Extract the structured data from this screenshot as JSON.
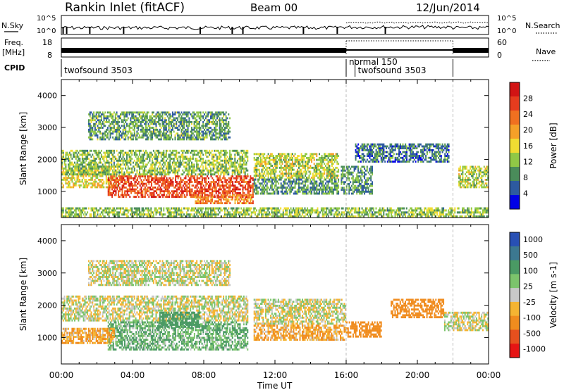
{
  "header": {
    "title": "Rankin Inlet (fitACF)",
    "beam": "Beam 00",
    "date": "12/Jun/2014"
  },
  "status_panels": {
    "nsky_label": "N.Sky",
    "nsearch_label": "N.Search",
    "nsky_ticks": [
      "10^5",
      "10^0"
    ],
    "nsearch_ticks": [
      "10^5",
      "10^0"
    ],
    "freq_label": "Freq.",
    "freq_unit": "[MHz]",
    "freq_ticks": [
      18,
      8
    ],
    "nave_label": "Nave",
    "nave_ticks": [
      60,
      0
    ],
    "cpid_label": "CPID",
    "cpid_segments": [
      {
        "label": "twofsound 3503",
        "start_hour": 0,
        "end_hour": 16
      },
      {
        "label": "normal 150",
        "start_hour": 16,
        "end_hour": 16.5
      },
      {
        "label": "twofsound 3503",
        "start_hour": 16.5,
        "end_hour": 24
      }
    ],
    "nave_dotted_interval_hours": [
      16,
      22
    ]
  },
  "chart_data": [
    {
      "type": "heatmap",
      "name": "power",
      "ylabel": "Slant Range [km]",
      "xlim_hours": [
        0,
        24
      ],
      "ylim": [
        180,
        4500
      ],
      "yticks": [
        1000,
        2000,
        3000,
        4000
      ],
      "colorbar_label": "Power [dB]",
      "colorbar_ticks": [
        4,
        8,
        12,
        16,
        20,
        24,
        28
      ],
      "colorbar_range": [
        0,
        32
      ],
      "colors": [
        "#0000e6",
        "#2d5aa0",
        "#4a8c5a",
        "#90c846",
        "#f0dc32",
        "#f5a028",
        "#f07020",
        "#e63c1e",
        "#d21414"
      ],
      "echo_regions": [
        {
          "t0": 0.0,
          "t1": 3.2,
          "r0": 1100,
          "r1": 1800,
          "level": 16
        },
        {
          "t0": 2.6,
          "t1": 10.8,
          "r0": 800,
          "r1": 1500,
          "level": 26
        },
        {
          "t0": 7.5,
          "t1": 10.8,
          "r0": 600,
          "r1": 900,
          "level": 22
        },
        {
          "t0": 0.0,
          "t1": 10.5,
          "r0": 1500,
          "r1": 2300,
          "level": 12
        },
        {
          "t0": 1.5,
          "t1": 9.5,
          "r0": 2600,
          "r1": 3500,
          "level": 10
        },
        {
          "t0": 10.8,
          "t1": 15.6,
          "r0": 1400,
          "r1": 2200,
          "level": 14
        },
        {
          "t0": 10.8,
          "t1": 15.6,
          "r0": 900,
          "r1": 1400,
          "level": 9
        },
        {
          "t0": 15.7,
          "t1": 17.5,
          "r0": 900,
          "r1": 1800,
          "level": 9
        },
        {
          "t0": 16.5,
          "t1": 21.8,
          "r0": 1900,
          "r1": 2500,
          "level": 7
        },
        {
          "t0": 22.3,
          "t1": 24.0,
          "r0": 1100,
          "r1": 1800,
          "level": 14
        },
        {
          "t0": 0.0,
          "t1": 24.0,
          "r0": 180,
          "r1": 500,
          "level": 12
        }
      ]
    },
    {
      "type": "heatmap",
      "name": "velocity",
      "xlabel": "Time UT",
      "ylabel": "Slant Range [km]",
      "xlim_hours": [
        0,
        24
      ],
      "xtick_labels": [
        "00:00",
        "04:00",
        "08:00",
        "12:00",
        "16:00",
        "20:00",
        "00:00"
      ],
      "ylim": [
        180,
        4500
      ],
      "yticks": [
        1000,
        2000,
        3000,
        4000
      ],
      "colorbar_label": "Velocity [m s-1]",
      "colorbar_ticks": [
        "1000",
        "500",
        "100",
        "25",
        "-25",
        "-100",
        "-500",
        "-1000"
      ],
      "colors": [
        "#2850b4",
        "#3c7890",
        "#4a9a64",
        "#7cc46c",
        "#c8c8c8",
        "#f5b432",
        "#f08c1e",
        "#e6501e",
        "#e61414"
      ],
      "echo_regions": [
        {
          "t0": 0.0,
          "t1": 10.5,
          "r0": 1500,
          "r1": 2300,
          "velocity": 0
        },
        {
          "t0": 2.6,
          "t1": 10.5,
          "r0": 600,
          "r1": 1500,
          "velocity": 100
        },
        {
          "t0": 5.5,
          "t1": 7.8,
          "r0": 1300,
          "r1": 1800,
          "velocity": 250
        },
        {
          "t0": 1.5,
          "t1": 9.5,
          "r0": 2600,
          "r1": 3400,
          "velocity": 0
        },
        {
          "t0": 10.8,
          "t1": 16.0,
          "r0": 1400,
          "r1": 2200,
          "velocity": 0
        },
        {
          "t0": 10.8,
          "t1": 16.0,
          "r0": 900,
          "r1": 1400,
          "velocity": -100
        },
        {
          "t0": 16.0,
          "t1": 18.0,
          "r0": 1000,
          "r1": 1500,
          "velocity": -300
        },
        {
          "t0": 18.5,
          "t1": 21.5,
          "r0": 1600,
          "r1": 2200,
          "velocity": -200
        },
        {
          "t0": 21.5,
          "t1": 24.0,
          "r0": 1200,
          "r1": 1800,
          "velocity": 0
        },
        {
          "t0": 0.0,
          "t1": 3.0,
          "r0": 800,
          "r1": 1300,
          "velocity": -100
        }
      ]
    }
  ]
}
